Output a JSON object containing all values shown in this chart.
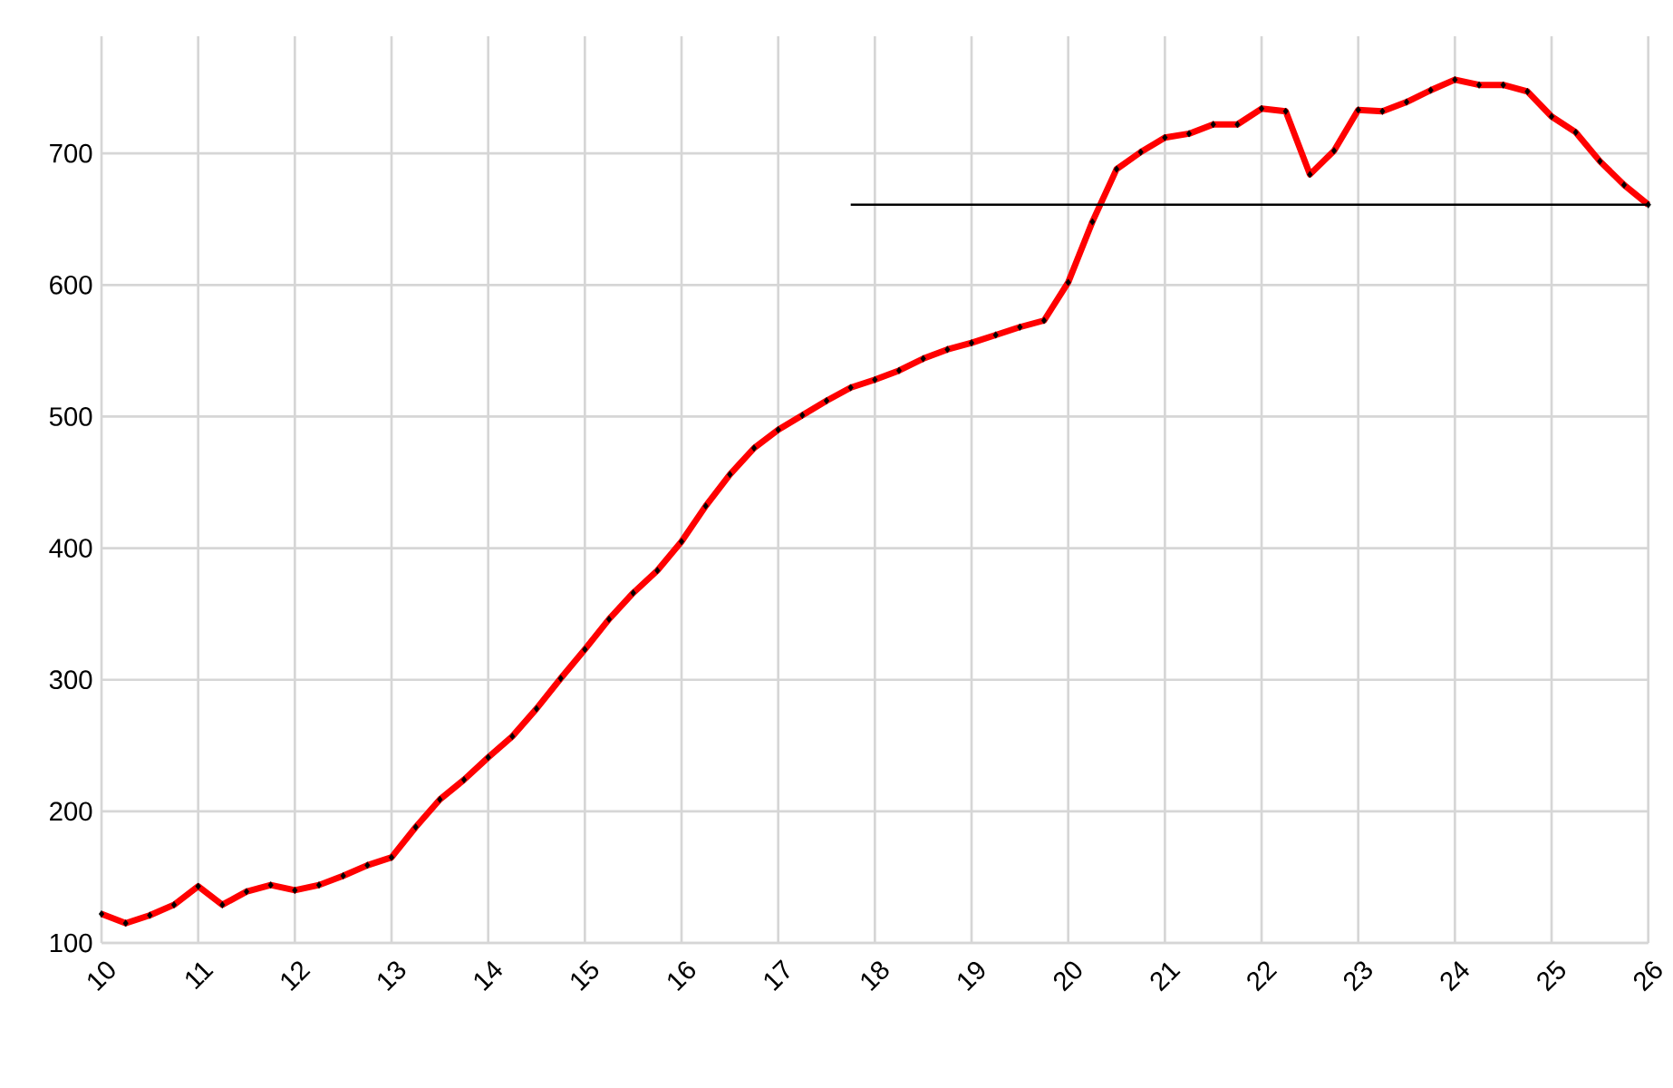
{
  "chart_data": {
    "type": "line",
    "x": [
      2010,
      2010.25,
      2010.5,
      2010.75,
      2011,
      2011.25,
      2011.5,
      2011.75,
      2012,
      2012.25,
      2012.5,
      2012.75,
      2013,
      2013.25,
      2013.5,
      2013.75,
      2014,
      2014.25,
      2014.5,
      2014.75,
      2015,
      2015.25,
      2015.5,
      2015.75,
      2016,
      2016.25,
      2016.5,
      2016.75,
      2017,
      2017.25,
      2017.5,
      2017.75,
      2018,
      2018.25,
      2018.5,
      2018.75,
      2019,
      2019.25,
      2019.5,
      2019.75,
      2020,
      2020.25,
      2020.5,
      2020.75,
      2021,
      2021.25,
      2021.5,
      2021.75,
      2022,
      2022.25,
      2022.5,
      2022.75,
      2023,
      2023.25,
      2023.5,
      2023.75,
      2024,
      2024.25,
      2024.5,
      2024.75,
      2025,
      2025.25,
      2025.5,
      2025.75,
      2026
    ],
    "series": [
      {
        "color": "#ff0000",
        "marker": "diamond",
        "line_style": "solid",
        "values": [
          122,
          115,
          121,
          129,
          143,
          129,
          139,
          144,
          140,
          144,
          151,
          159,
          165,
          188,
          209,
          224,
          241,
          257,
          278,
          301,
          323,
          346,
          366,
          383,
          405,
          432,
          456,
          476,
          490,
          501,
          512,
          522,
          528,
          535,
          544,
          551,
          556,
          562,
          568,
          573,
          602,
          648,
          688,
          701,
          712,
          715,
          722,
          722,
          734,
          732,
          684,
          702,
          733,
          732,
          739,
          748,
          756,
          752,
          752,
          747,
          728,
          716,
          694,
          676,
          661
        ]
      },
      {
        "type": "line",
        "color": "#000000",
        "line_style": "solid",
        "x": [
          2017.75,
          2026
        ],
        "values": [
          661,
          661
        ]
      }
    ],
    "xlim": [
      2010,
      2026
    ],
    "ylim": [
      100,
      789
    ],
    "xticks": [
      {
        "value": 2010,
        "label": "10"
      },
      {
        "value": 2011,
        "label": "11"
      },
      {
        "value": 2012,
        "label": "12"
      },
      {
        "value": 2013,
        "label": "13"
      },
      {
        "value": 2014,
        "label": "14"
      },
      {
        "value": 2015,
        "label": "15"
      },
      {
        "value": 2016,
        "label": "16"
      },
      {
        "value": 2017,
        "label": "17"
      },
      {
        "value": 2018,
        "label": "18"
      },
      {
        "value": 2019,
        "label": "19"
      },
      {
        "value": 2020,
        "label": "20"
      },
      {
        "value": 2021,
        "label": "21"
      },
      {
        "value": 2022,
        "label": "22"
      },
      {
        "value": 2023,
        "label": "23"
      },
      {
        "value": 2024,
        "label": "24"
      },
      {
        "value": 2025,
        "label": "25"
      },
      {
        "value": 2026,
        "label": "26"
      }
    ],
    "yticks": [
      100,
      200,
      300,
      400,
      500,
      600,
      700
    ],
    "grid": true
  }
}
